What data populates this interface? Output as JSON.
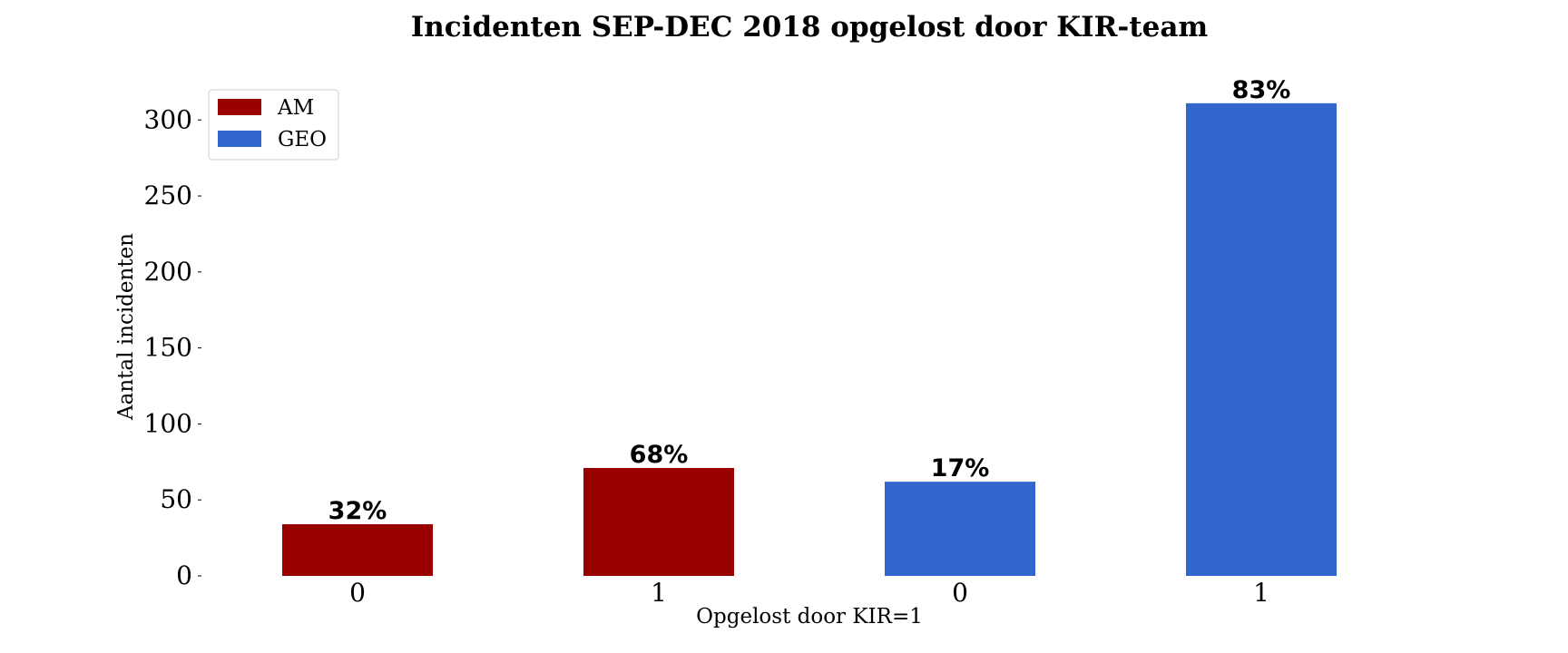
{
  "chart_data": {
    "type": "bar",
    "title": "Incidenten SEP-DEC 2018 opgelost door KIR-team",
    "xlabel": "Opgelost door KIR=1",
    "ylabel": "Aantal incidenten",
    "ylim": [
      0,
      330
    ],
    "yticks": [
      0,
      50,
      100,
      150,
      200,
      250,
      300
    ],
    "grid": false,
    "legend_position": "top-left",
    "categories": [
      "0",
      "1",
      "0",
      "1"
    ],
    "series": [
      {
        "name": "AM",
        "color": "#990000",
        "values": [
          34,
          71,
          null,
          null
        ]
      },
      {
        "name": "GEO",
        "color": "#3366cc",
        "values": [
          null,
          null,
          62,
          311
        ]
      }
    ],
    "data_labels": [
      "32%",
      "68%",
      "17%",
      "83%"
    ]
  }
}
